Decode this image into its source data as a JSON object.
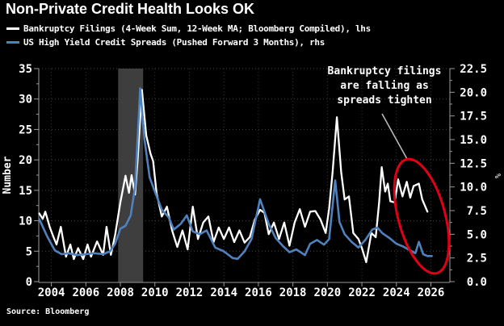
{
  "header": {
    "title": "Non-Private Credit Health Looks OK"
  },
  "footer": {
    "source": "Source: Bloomberg"
  },
  "chart_data": {
    "type": "line",
    "title": "Non-Private Credit Health Looks OK",
    "legend_position": "top-left",
    "grid": "dotted",
    "colors": {
      "background": "#000000",
      "bankruptcy_line": "#ffffff",
      "spread_line": "#4f81bd",
      "recession_band": "#3e3e3e",
      "grid_h": "#454545",
      "grid_v": "#383838",
      "axis": "#9a9a9a",
      "highlight": "#e00016",
      "pointer": "#b8b8b8"
    },
    "left_axis": {
      "label": "Number",
      "range": [
        0,
        35
      ],
      "ticks": [
        0,
        5,
        10,
        15,
        20,
        25,
        30,
        35
      ]
    },
    "right_axis": {
      "label": "%",
      "range": [
        0,
        22.5
      ],
      "tick_labels": [
        "0.0",
        "2.5",
        "5.0",
        "7.5",
        "10.0",
        "12.5",
        "15.0",
        "17.5",
        "20.0",
        "22.5"
      ]
    },
    "x_axis": {
      "range": [
        2003.27,
        2027.1
      ],
      "ticks": [
        2004,
        2006,
        2008,
        2010,
        2012,
        2014,
        2016,
        2018,
        2020,
        2022,
        2024,
        2026
      ]
    },
    "recession_band": {
      "start": 2007.87,
      "end": 2009.32
    },
    "annotation": {
      "text": "Bankruptcy filings\nare falling as\nspreads tighten",
      "pointer_from": [
        473,
        141
      ],
      "pointer_to": [
        504,
        197
      ],
      "ellipse": {
        "cx": 522,
        "cy": 268,
        "rx": 29,
        "ry": 73,
        "rotate": -15
      }
    },
    "series": [
      {
        "name": "Bankruptcy Filings (4-Week Sum, 12-Week MA; Bloomberg Compiled), lhs",
        "axis": "left",
        "color": "#ffffff",
        "points": [
          [
            2003.3,
            11.2
          ],
          [
            2003.5,
            10.3
          ],
          [
            2003.65,
            11.5
          ],
          [
            2003.9,
            9.0
          ],
          [
            2004.1,
            7.5
          ],
          [
            2004.3,
            6.1
          ],
          [
            2004.55,
            9.0
          ],
          [
            2004.85,
            4.1
          ],
          [
            2005.1,
            6.1
          ],
          [
            2005.3,
            3.7
          ],
          [
            2005.55,
            5.5
          ],
          [
            2005.85,
            3.7
          ],
          [
            2006.1,
            6.1
          ],
          [
            2006.3,
            4.1
          ],
          [
            2006.65,
            6.6
          ],
          [
            2007.0,
            4.4
          ],
          [
            2007.2,
            9.0
          ],
          [
            2007.45,
            4.4
          ],
          [
            2007.7,
            7.7
          ],
          [
            2008.0,
            13.0
          ],
          [
            2008.3,
            17.4
          ],
          [
            2008.5,
            14.6
          ],
          [
            2008.65,
            17.5
          ],
          [
            2008.85,
            14.3
          ],
          [
            2009.0,
            20.0
          ],
          [
            2009.25,
            31.5
          ],
          [
            2009.5,
            24.0
          ],
          [
            2009.75,
            21.0
          ],
          [
            2009.9,
            19.8
          ],
          [
            2010.1,
            14.5
          ],
          [
            2010.4,
            10.7
          ],
          [
            2010.7,
            12.3
          ],
          [
            2011.0,
            8.4
          ],
          [
            2011.3,
            5.7
          ],
          [
            2011.6,
            8.4
          ],
          [
            2011.9,
            5.3
          ],
          [
            2012.2,
            12.3
          ],
          [
            2012.5,
            7.0
          ],
          [
            2012.8,
            9.7
          ],
          [
            2013.1,
            10.7
          ],
          [
            2013.4,
            6.5
          ],
          [
            2013.7,
            8.9
          ],
          [
            2014.0,
            7.0
          ],
          [
            2014.3,
            8.9
          ],
          [
            2014.6,
            6.5
          ],
          [
            2014.9,
            8.4
          ],
          [
            2015.2,
            6.4
          ],
          [
            2015.5,
            7.3
          ],
          [
            2015.8,
            10.2
          ],
          [
            2016.1,
            11.8
          ],
          [
            2016.35,
            11.3
          ],
          [
            2016.6,
            7.8
          ],
          [
            2016.9,
            9.7
          ],
          [
            2017.2,
            7.0
          ],
          [
            2017.5,
            9.7
          ],
          [
            2017.8,
            5.9
          ],
          [
            2018.1,
            9.7
          ],
          [
            2018.4,
            11.9
          ],
          [
            2018.7,
            9.0
          ],
          [
            2019.0,
            11.5
          ],
          [
            2019.3,
            11.6
          ],
          [
            2019.6,
            10.2
          ],
          [
            2019.9,
            8.0
          ],
          [
            2020.1,
            12.0
          ],
          [
            2020.3,
            18.0
          ],
          [
            2020.55,
            27.0
          ],
          [
            2020.8,
            18.0
          ],
          [
            2021.0,
            13.5
          ],
          [
            2021.25,
            14.0
          ],
          [
            2021.5,
            8.0
          ],
          [
            2021.8,
            7.0
          ],
          [
            2022.0,
            5.5
          ],
          [
            2022.25,
            3.2
          ],
          [
            2022.55,
            8.0
          ],
          [
            2022.8,
            7.3
          ],
          [
            2023.0,
            13.0
          ],
          [
            2023.15,
            18.8
          ],
          [
            2023.35,
            14.8
          ],
          [
            2023.5,
            16.1
          ],
          [
            2023.65,
            13.2
          ],
          [
            2023.9,
            13.0
          ],
          [
            2024.1,
            16.8
          ],
          [
            2024.35,
            14.0
          ],
          [
            2024.6,
            16.4
          ],
          [
            2024.8,
            13.8
          ],
          [
            2025.0,
            15.7
          ],
          [
            2025.3,
            16.1
          ],
          [
            2025.5,
            13.5
          ],
          [
            2025.8,
            11.5
          ]
        ]
      },
      {
        "name": "US High Yield Credit Spreads (Pushed Forward 3 Months), rhs",
        "axis": "right",
        "color": "#4f81bd",
        "points": [
          [
            2003.3,
            6.6
          ],
          [
            2003.75,
            4.8
          ],
          [
            2004.2,
            3.3
          ],
          [
            2004.6,
            2.9
          ],
          [
            2005.0,
            3.0
          ],
          [
            2005.5,
            2.8
          ],
          [
            2006.0,
            2.9
          ],
          [
            2006.5,
            3.0
          ],
          [
            2007.0,
            2.9
          ],
          [
            2007.4,
            3.2
          ],
          [
            2007.7,
            4.0
          ],
          [
            2008.0,
            5.6
          ],
          [
            2008.3,
            5.9
          ],
          [
            2008.6,
            7.0
          ],
          [
            2008.85,
            10.0
          ],
          [
            2009.15,
            20.4
          ],
          [
            2009.4,
            15.0
          ],
          [
            2009.7,
            11.0
          ],
          [
            2010.0,
            9.5
          ],
          [
            2010.4,
            7.6
          ],
          [
            2010.8,
            6.8
          ],
          [
            2011.1,
            5.5
          ],
          [
            2011.5,
            6.1
          ],
          [
            2011.85,
            7.0
          ],
          [
            2012.2,
            5.3
          ],
          [
            2012.6,
            5.0
          ],
          [
            2013.0,
            5.4
          ],
          [
            2013.5,
            3.6
          ],
          [
            2014.0,
            3.2
          ],
          [
            2014.5,
            2.5
          ],
          [
            2014.8,
            2.4
          ],
          [
            2015.2,
            3.2
          ],
          [
            2015.6,
            4.5
          ],
          [
            2016.1,
            8.7
          ],
          [
            2016.6,
            6.1
          ],
          [
            2017.0,
            4.6
          ],
          [
            2017.4,
            3.8
          ],
          [
            2017.8,
            3.1
          ],
          [
            2018.2,
            3.4
          ],
          [
            2018.7,
            2.8
          ],
          [
            2019.0,
            4.0
          ],
          [
            2019.4,
            4.4
          ],
          [
            2019.8,
            3.9
          ],
          [
            2020.1,
            4.5
          ],
          [
            2020.45,
            10.7
          ],
          [
            2020.7,
            6.3
          ],
          [
            2021.0,
            5.0
          ],
          [
            2021.4,
            4.2
          ],
          [
            2021.8,
            3.6
          ],
          [
            2022.2,
            4.4
          ],
          [
            2022.6,
            5.5
          ],
          [
            2022.9,
            5.7
          ],
          [
            2023.2,
            5.1
          ],
          [
            2023.6,
            4.6
          ],
          [
            2024.0,
            4.0
          ],
          [
            2024.4,
            3.7
          ],
          [
            2024.8,
            3.3
          ],
          [
            2025.1,
            3.0
          ],
          [
            2025.3,
            4.2
          ],
          [
            2025.55,
            2.9
          ],
          [
            2025.8,
            2.7
          ],
          [
            2026.05,
            2.7
          ]
        ]
      }
    ]
  }
}
